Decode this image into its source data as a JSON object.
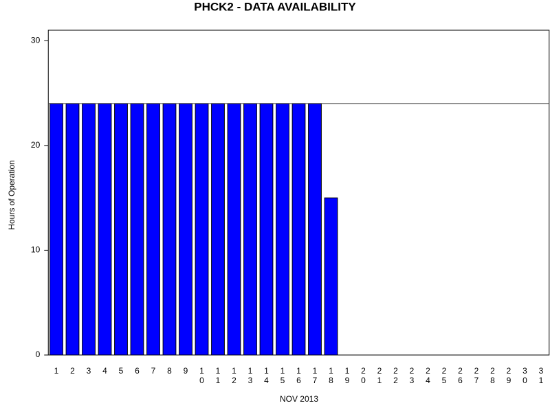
{
  "chart_data": {
    "type": "bar",
    "title": "PHCK2 - DATA AVAILABILITY",
    "ylabel": "Hours of Operation",
    "xlabel": "NOV 2013",
    "categories": [
      "1",
      "2",
      "3",
      "4",
      "5",
      "6",
      "7",
      "8",
      "9",
      "10",
      "11",
      "12",
      "13",
      "14",
      "15",
      "16",
      "17",
      "18",
      "19",
      "20",
      "21",
      "22",
      "23",
      "24",
      "25",
      "26",
      "27",
      "28",
      "29",
      "30",
      "31"
    ],
    "values": [
      24,
      24,
      24,
      24,
      24,
      24,
      24,
      24,
      24,
      24,
      24,
      24,
      24,
      24,
      24,
      24,
      24,
      15,
      0,
      0,
      0,
      0,
      0,
      0,
      0,
      0,
      0,
      0,
      0,
      0,
      0
    ],
    "color": "#0000ff",
    "reference_line": 24,
    "ylim": [
      0,
      31
    ],
    "yticks": [
      0,
      10,
      20,
      30
    ],
    "grid": false
  }
}
